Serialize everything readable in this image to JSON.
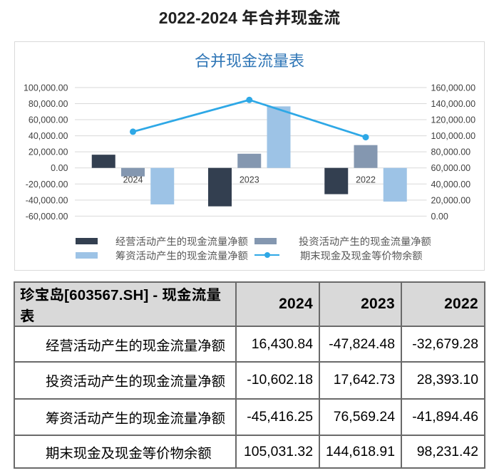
{
  "page_title": "2022-2024 年合并现金流",
  "chart_data": {
    "type": "combo",
    "title": "合并现金流量表",
    "categories": [
      "2024",
      "2023",
      "2022"
    ],
    "bar_series": [
      {
        "name": "经营活动产生的现金流量净额",
        "color": "#333F50",
        "values": [
          16430.84,
          -47824.48,
          -32679.28
        ]
      },
      {
        "name": "投资活动产生的现金流量净额",
        "color": "#8497B0",
        "values": [
          -10602.18,
          17642.73,
          28393.1
        ]
      },
      {
        "name": "筹资活动产生的现金流量净额",
        "color": "#9DC3E6",
        "values": [
          -45416.25,
          76569.24,
          -41894.46
        ]
      }
    ],
    "line_series": {
      "name": "期末现金及现金等价物余额",
      "color": "#2EA8E6",
      "axis": "right",
      "values": [
        105031.32,
        144618.91,
        98231.42
      ]
    },
    "left_axis": {
      "min": -60000,
      "max": 100000,
      "step": 20000,
      "tick_labels": [
        "100,000.00",
        "80,000.00",
        "60,000.00",
        "40,000.00",
        "20,000.00",
        "0.00",
        "-20,000.00",
        "-40,000.00",
        "-60,000.00"
      ]
    },
    "right_axis": {
      "min": 0,
      "max": 160000,
      "step": 20000,
      "tick_labels": [
        "160,000.00",
        "140,000.00",
        "120,000.00",
        "100,000.00",
        "80,000.00",
        "60,000.00",
        "40,000.00",
        "20,000.00",
        "0.00"
      ]
    },
    "grid": true,
    "legend_position": "bottom"
  },
  "table": {
    "header": [
      "珍宝岛[603567.SH] - 现金流量表",
      "2024",
      "2023",
      "2022"
    ],
    "rows": [
      [
        "经营活动产生的现金流量净额",
        "16,430.84",
        "-47,824.48",
        "-32,679.28"
      ],
      [
        "投资活动产生的现金流量净额",
        "-10,602.18",
        "17,642.73",
        "28,393.10"
      ],
      [
        "筹资活动产生的现金流量净额",
        "-45,416.25",
        "76,569.24",
        "-41,894.46"
      ],
      [
        "期末现金及现金等价物余额",
        "105,031.32",
        "144,618.91",
        "98,231.42"
      ]
    ]
  },
  "colors": {
    "chart_title": "#2E75B6",
    "gridline": "#D9D9D9",
    "axis_label": "#404040",
    "legend_text": "#595959",
    "table_border": "#595959",
    "table_header_bg": "#D9D9D9",
    "text": "#1A1A1A"
  }
}
